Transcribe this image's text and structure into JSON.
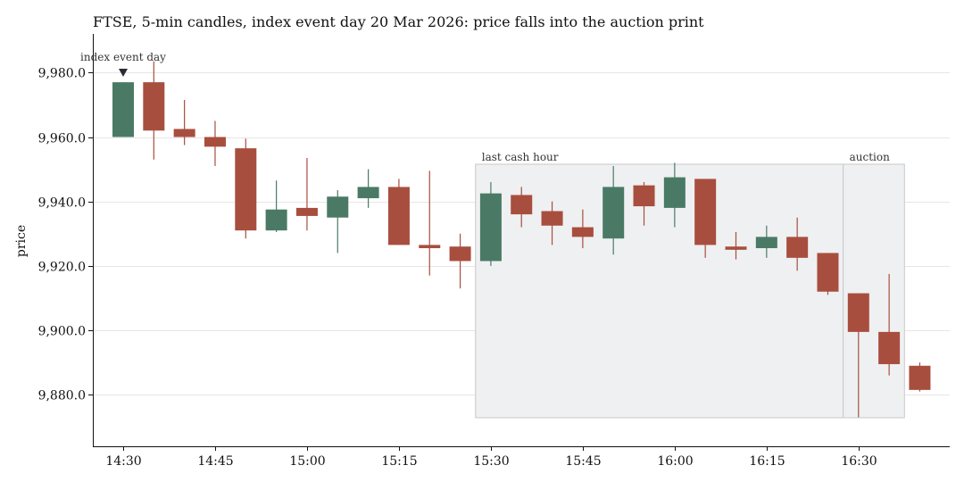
{
  "chart_data": {
    "type": "candlestick",
    "title": "FTSE, 5-min candles, index event day 20 Mar 2026: price falls into the auction print",
    "ylabel": "price",
    "xlabel": "",
    "ylim": [
      9864,
      9992
    ],
    "y_ticks": [
      9880,
      9900,
      9920,
      9940,
      9960,
      9980
    ],
    "y_tick_labels": [
      "9,880.0",
      "9,900.0",
      "9,920.0",
      "9,940.0",
      "9,960.0",
      "9,980.0"
    ],
    "x_tick_labels": [
      "14:30",
      "14:45",
      "15:00",
      "15:15",
      "15:30",
      "15:45",
      "16:00",
      "16:15",
      "16:30"
    ],
    "grid": "horizontal",
    "colors": {
      "up": "#4a7a66",
      "down": "#a84e3e",
      "shade": "#eff0f2",
      "shade_edge": "#c8c8c8"
    },
    "candles": [
      {
        "time": "14:30",
        "open": 9960.0,
        "high": 9977.0,
        "low": 9960.0,
        "close": 9977.0
      },
      {
        "time": "14:35",
        "open": 9977.0,
        "high": 9983.5,
        "low": 9953.0,
        "close": 9962.0
      },
      {
        "time": "14:40",
        "open": 9962.5,
        "high": 9971.5,
        "low": 9957.5,
        "close": 9960.0
      },
      {
        "time": "14:45",
        "open": 9960.0,
        "high": 9965.0,
        "low": 9951.0,
        "close": 9957.0
      },
      {
        "time": "14:50",
        "open": 9956.5,
        "high": 9959.5,
        "low": 9928.5,
        "close": 9931.0
      },
      {
        "time": "14:55",
        "open": 9931.0,
        "high": 9946.5,
        "low": 9930.5,
        "close": 9937.5
      },
      {
        "time": "15:00",
        "open": 9938.0,
        "high": 9953.5,
        "low": 9931.0,
        "close": 9935.5
      },
      {
        "time": "15:05",
        "open": 9935.0,
        "high": 9943.5,
        "low": 9924.0,
        "close": 9941.5
      },
      {
        "time": "15:10",
        "open": 9941.0,
        "high": 9950.0,
        "low": 9938.0,
        "close": 9944.5
      },
      {
        "time": "15:15",
        "open": 9944.5,
        "high": 9947.0,
        "low": 9926.5,
        "close": 9926.5
      },
      {
        "time": "15:20",
        "open": 9926.5,
        "high": 9949.5,
        "low": 9917.0,
        "close": 9925.5
      },
      {
        "time": "15:25",
        "open": 9926.0,
        "high": 9930.0,
        "low": 9913.0,
        "close": 9921.5
      },
      {
        "time": "15:30",
        "open": 9921.5,
        "high": 9946.0,
        "low": 9920.0,
        "close": 9942.5
      },
      {
        "time": "15:35",
        "open": 9942.0,
        "high": 9944.5,
        "low": 9932.0,
        "close": 9936.0
      },
      {
        "time": "15:40",
        "open": 9937.0,
        "high": 9940.0,
        "low": 9926.5,
        "close": 9932.5
      },
      {
        "time": "15:45",
        "open": 9932.0,
        "high": 9937.5,
        "low": 9925.5,
        "close": 9929.0
      },
      {
        "time": "15:50",
        "open": 9928.5,
        "high": 9951.0,
        "low": 9923.5,
        "close": 9944.5
      },
      {
        "time": "15:55",
        "open": 9945.0,
        "high": 9946.0,
        "low": 9932.5,
        "close": 9938.5
      },
      {
        "time": "16:00",
        "open": 9938.0,
        "high": 9952.0,
        "low": 9932.0,
        "close": 9947.5
      },
      {
        "time": "16:05",
        "open": 9947.0,
        "high": 9947.0,
        "low": 9922.5,
        "close": 9926.5
      },
      {
        "time": "16:10",
        "open": 9926.0,
        "high": 9930.5,
        "low": 9922.0,
        "close": 9925.0
      },
      {
        "time": "16:15",
        "open": 9925.5,
        "high": 9932.5,
        "low": 9922.5,
        "close": 9929.0
      },
      {
        "time": "16:20",
        "open": 9929.0,
        "high": 9935.0,
        "low": 9918.5,
        "close": 9922.5
      },
      {
        "time": "16:25",
        "open": 9924.0,
        "high": 9924.0,
        "low": 9911.0,
        "close": 9912.0
      },
      {
        "time": "16:30",
        "open": 9911.5,
        "high": 9911.5,
        "low": 9873.0,
        "close": 9899.5
      },
      {
        "time": "16:35",
        "open": 9899.5,
        "high": 9917.5,
        "low": 9886.0,
        "close": 9889.5
      },
      {
        "time": "16:40",
        "open": 9889.0,
        "high": 9890.0,
        "low": 9881.0,
        "close": 9881.5
      }
    ],
    "annotations": [
      {
        "label": "index event day",
        "at": "14:30",
        "marker": "triangle-down"
      }
    ],
    "shaded_regions": [
      {
        "label": "last cash hour",
        "from": "15:27.5",
        "to": "16:27.5"
      },
      {
        "label": "auction",
        "from": "16:27.5",
        "to": "16:37.5"
      }
    ]
  }
}
